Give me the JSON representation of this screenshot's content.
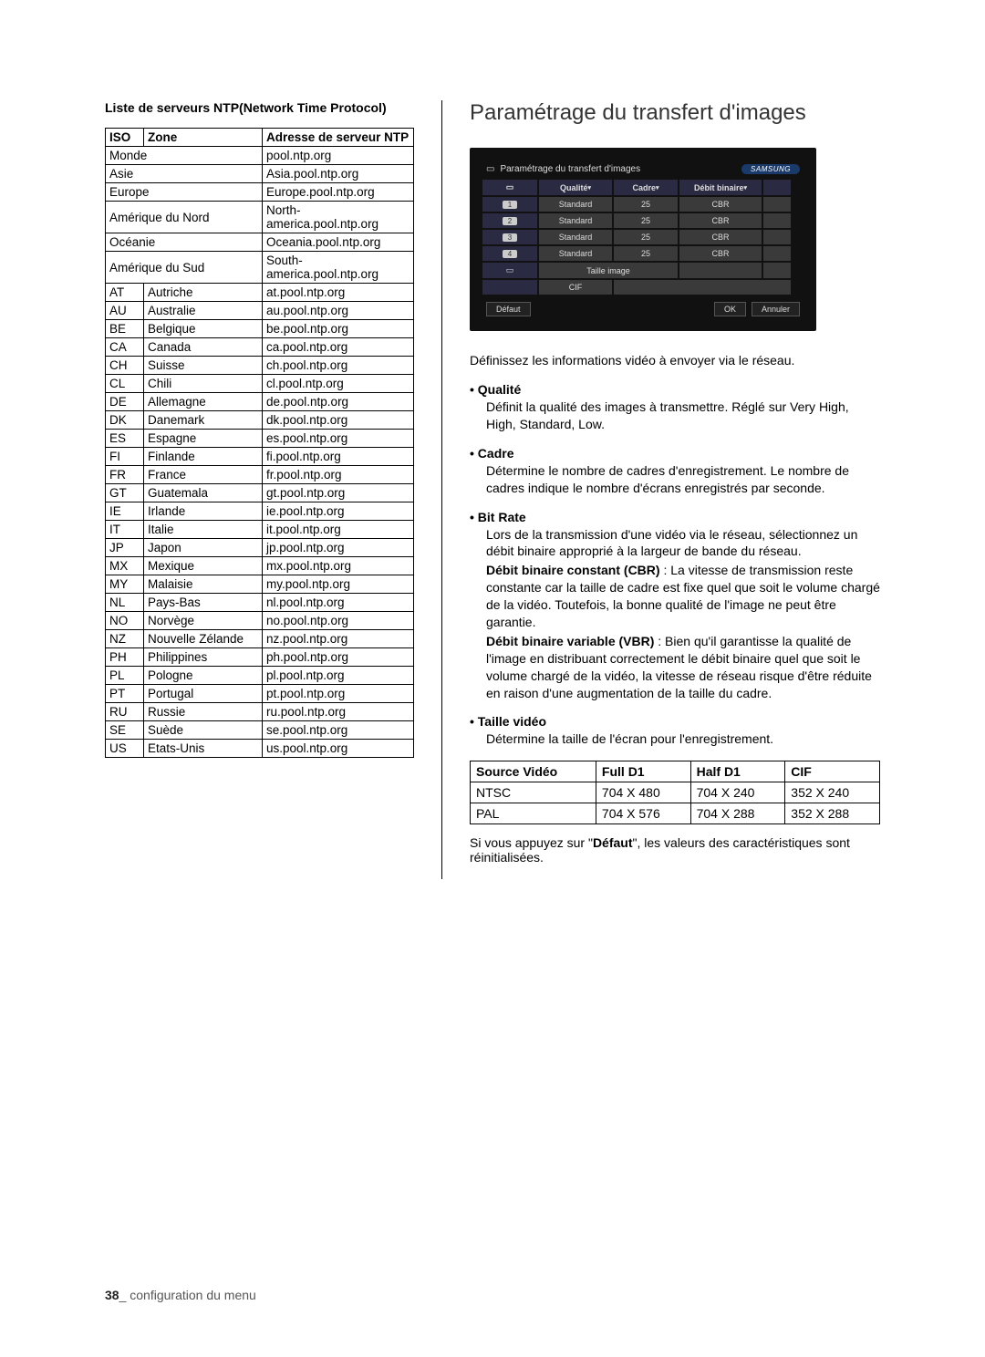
{
  "leftTitle": "Liste de serveurs NTP(Network Time Protocol)",
  "ntpTable": {
    "headers": {
      "iso": "ISO",
      "zone": "Zone",
      "addr": "Adresse de serveur NTP"
    },
    "regions": [
      {
        "zone": "Monde",
        "addr": "pool.ntp.org"
      },
      {
        "zone": "Asie",
        "addr": "Asia.pool.ntp.org"
      },
      {
        "zone": "Europe",
        "addr": "Europe.pool.ntp.org"
      },
      {
        "zone": "Amérique du Nord",
        "addr": "North-america.pool.ntp.org"
      },
      {
        "zone": "Océanie",
        "addr": "Oceania.pool.ntp.org"
      },
      {
        "zone": "Amérique du Sud",
        "addr": "South-america.pool.ntp.org"
      }
    ],
    "rows": [
      {
        "iso": "AT",
        "zone": "Autriche",
        "addr": "at.pool.ntp.org"
      },
      {
        "iso": "AU",
        "zone": "Australie",
        "addr": "au.pool.ntp.org"
      },
      {
        "iso": "BE",
        "zone": "Belgique",
        "addr": "be.pool.ntp.org"
      },
      {
        "iso": "CA",
        "zone": "Canada",
        "addr": "ca.pool.ntp.org"
      },
      {
        "iso": "CH",
        "zone": "Suisse",
        "addr": "ch.pool.ntp.org"
      },
      {
        "iso": "CL",
        "zone": "Chili",
        "addr": "cl.pool.ntp.org"
      },
      {
        "iso": "DE",
        "zone": "Allemagne",
        "addr": "de.pool.ntp.org"
      },
      {
        "iso": "DK",
        "zone": "Danemark",
        "addr": "dk.pool.ntp.org"
      },
      {
        "iso": "ES",
        "zone": "Espagne",
        "addr": "es.pool.ntp.org"
      },
      {
        "iso": "FI",
        "zone": "Finlande",
        "addr": "fi.pool.ntp.org"
      },
      {
        "iso": "FR",
        "zone": "France",
        "addr": "fr.pool.ntp.org"
      },
      {
        "iso": "GT",
        "zone": "Guatemala",
        "addr": "gt.pool.ntp.org"
      },
      {
        "iso": "IE",
        "zone": "Irlande",
        "addr": "ie.pool.ntp.org"
      },
      {
        "iso": "IT",
        "zone": "Italie",
        "addr": "it.pool.ntp.org"
      },
      {
        "iso": "JP",
        "zone": "Japon",
        "addr": "jp.pool.ntp.org"
      },
      {
        "iso": "MX",
        "zone": "Mexique",
        "addr": "mx.pool.ntp.org"
      },
      {
        "iso": "MY",
        "zone": "Malaisie",
        "addr": "my.pool.ntp.org"
      },
      {
        "iso": "NL",
        "zone": "Pays-Bas",
        "addr": "nl.pool.ntp.org"
      },
      {
        "iso": "NO",
        "zone": "Norvège",
        "addr": "no.pool.ntp.org"
      },
      {
        "iso": "NZ",
        "zone": "Nouvelle Zélande",
        "addr": "nz.pool.ntp.org"
      },
      {
        "iso": "PH",
        "zone": "Philippines",
        "addr": "ph.pool.ntp.org"
      },
      {
        "iso": "PL",
        "zone": "Pologne",
        "addr": "pl.pool.ntp.org"
      },
      {
        "iso": "PT",
        "zone": "Portugal",
        "addr": "pt.pool.ntp.org"
      },
      {
        "iso": "RU",
        "zone": "Russie",
        "addr": "ru.pool.ntp.org"
      },
      {
        "iso": "SE",
        "zone": "Suède",
        "addr": "se.pool.ntp.org"
      },
      {
        "iso": "US",
        "zone": "Etats-Unis",
        "addr": "us.pool.ntp.org"
      }
    ]
  },
  "right": {
    "title": "Paramétrage du transfert d'images",
    "screenshot": {
      "windowTitle": "Paramétrage du transfert d'images",
      "brand": "SAMSUNG",
      "cols": {
        "ch": "",
        "qualite": "Qualité",
        "cadre": "Cadre",
        "bitrate": "Débit binaire"
      },
      "channels": [
        {
          "ch": "1",
          "qualite": "Standard",
          "cadre": "25",
          "bitrate": "CBR"
        },
        {
          "ch": "2",
          "qualite": "Standard",
          "cadre": "25",
          "bitrate": "CBR"
        },
        {
          "ch": "3",
          "qualite": "Standard",
          "cadre": "25",
          "bitrate": "CBR"
        },
        {
          "ch": "4",
          "qualite": "Standard",
          "cadre": "25",
          "bitrate": "CBR"
        }
      ],
      "tailleLabel": "Taille image",
      "tailleValue": "CIF",
      "buttons": {
        "defaut": "Défaut",
        "ok": "OK",
        "annuler": "Annuler"
      },
      "colors": {
        "background": "#111111",
        "cell": "#3a3a3a",
        "header": "#2a2a42",
        "text": "#dddddd",
        "brandBg": "#1a3a6a"
      }
    },
    "intro": "Définissez les informations vidéo à envoyer via le réseau.",
    "bullets": [
      {
        "title": "Qualité",
        "body": "Définit la qualité des images à transmettre. Réglé sur Very High, High, Standard, Low."
      },
      {
        "title": "Cadre",
        "body": "Détermine le nombre de cadres d'enregistrement. Le nombre de cadres indique le nombre d'écrans enregistrés par seconde."
      },
      {
        "title": "Bit Rate",
        "body": "Lors de la transmission d'une vidéo via le réseau, sélectionnez un débit binaire approprié à la largeur de bande du réseau.",
        "extras": [
          {
            "bold": "Débit binaire constant (CBR)",
            "text": " : La vitesse de transmission reste constante car la taille de cadre est fixe quel que soit le volume chargé de la vidéo. Toutefois, la bonne qualité de l'image ne peut être garantie."
          },
          {
            "bold": "Débit binaire variable (VBR)",
            "text": " : Bien qu'il garantisse la qualité de l'image en distribuant correctement le débit binaire quel que soit le volume chargé de la vidéo, la vitesse de réseau risque d'être réduite en raison d'une augmentation de la taille du cadre."
          }
        ]
      },
      {
        "title": "Taille vidéo",
        "body": "Détermine la taille de l'écran pour l'enregistrement."
      }
    ],
    "resTable": {
      "headers": [
        "Source Vidéo",
        "Full D1",
        "Half D1",
        "CIF"
      ],
      "rows": [
        [
          "NTSC",
          "704 X 480",
          "704 X 240",
          "352 X 240"
        ],
        [
          "PAL",
          "704 X 576",
          "704 X 288",
          "352 X 288"
        ]
      ]
    },
    "footnote_pre": "Si vous appuyez sur \"",
    "footnote_bold": "Défaut",
    "footnote_post": "\", les valeurs des caractéristiques sont réinitialisées."
  },
  "footer": {
    "page": "38",
    "sep": "_ ",
    "label": "configuration du menu"
  }
}
